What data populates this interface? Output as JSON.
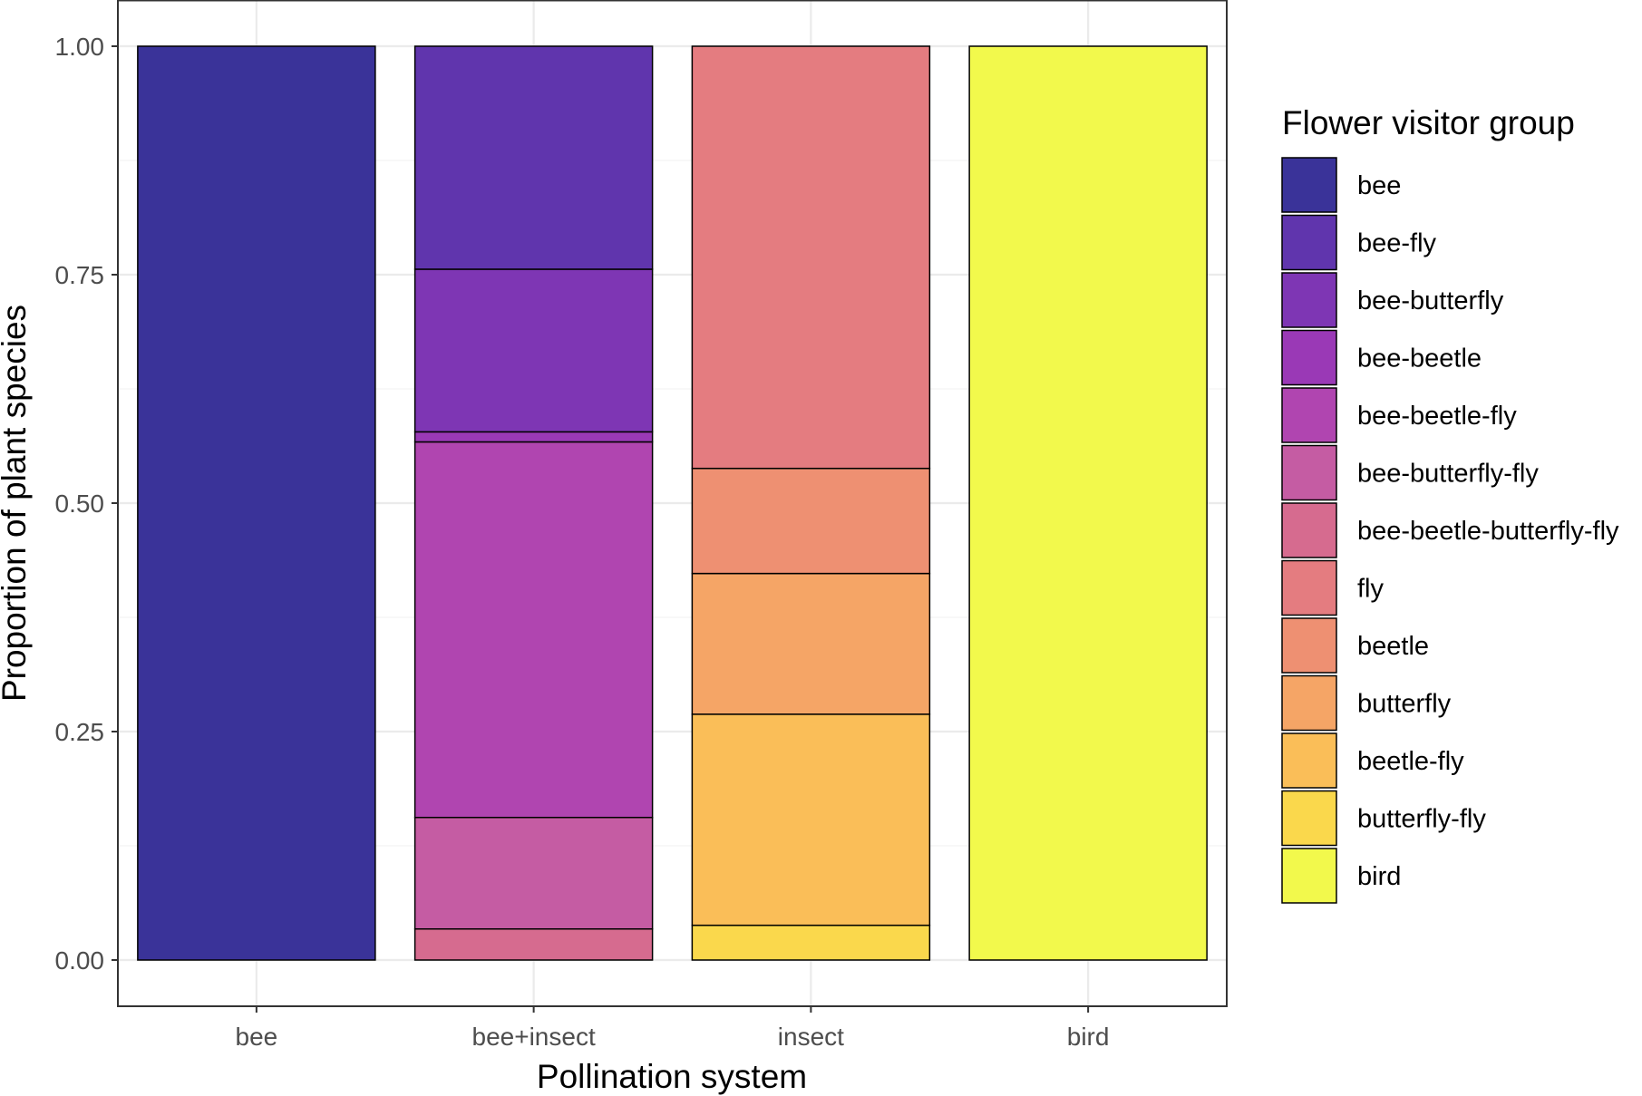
{
  "chart_data": {
    "type": "bar",
    "stacked": true,
    "title": "",
    "xlabel": "Pollination system",
    "ylabel": "Proportion of plant species",
    "ylim": [
      0,
      1.05
    ],
    "yticks": [
      "0.00",
      "0.25",
      "0.50",
      "0.75",
      "1.00"
    ],
    "grid": true,
    "legend_position": "right",
    "legend_title": "Flower visitor group",
    "categories": [
      "bee",
      "bee+insect",
      "insect",
      "bird"
    ],
    "series": [
      {
        "name": "bee",
        "color": "#3a3399",
        "values": [
          1.0,
          0,
          0,
          0
        ]
      },
      {
        "name": "bee-fly",
        "color": "#6035ad",
        "values": [
          0,
          0.244,
          0,
          0
        ]
      },
      {
        "name": "bee-butterfly",
        "color": "#7e36b4",
        "values": [
          0,
          0.178,
          0,
          0
        ]
      },
      {
        "name": "bee-beetle",
        "color": "#9a39b6",
        "values": [
          0,
          0.011,
          0,
          0
        ]
      },
      {
        "name": "bee-beetle-fly",
        "color": "#b045b0",
        "values": [
          0,
          0.411,
          0,
          0
        ]
      },
      {
        "name": "bee-butterfly-fly",
        "color": "#c55ca3",
        "values": [
          0,
          0.122,
          0,
          0
        ]
      },
      {
        "name": "bee-beetle-butterfly-fly",
        "color": "#d66b8f",
        "values": [
          0,
          0.034,
          0,
          0
        ]
      },
      {
        "name": "fly",
        "color": "#e47c80",
        "values": [
          0,
          0,
          0.462,
          0
        ]
      },
      {
        "name": "beetle",
        "color": "#ee9072",
        "values": [
          0,
          0,
          0.115,
          0
        ]
      },
      {
        "name": "butterfly",
        "color": "#f5a566",
        "values": [
          0,
          0,
          0.154,
          0
        ]
      },
      {
        "name": "beetle-fly",
        "color": "#fabe58",
        "values": [
          0,
          0,
          0.231,
          0
        ]
      },
      {
        "name": "butterfly-fly",
        "color": "#fad84c",
        "values": [
          0,
          0,
          0.038,
          0
        ]
      },
      {
        "name": "bird",
        "color": "#f2f94c",
        "values": [
          0,
          0,
          0,
          1.0
        ]
      }
    ]
  }
}
